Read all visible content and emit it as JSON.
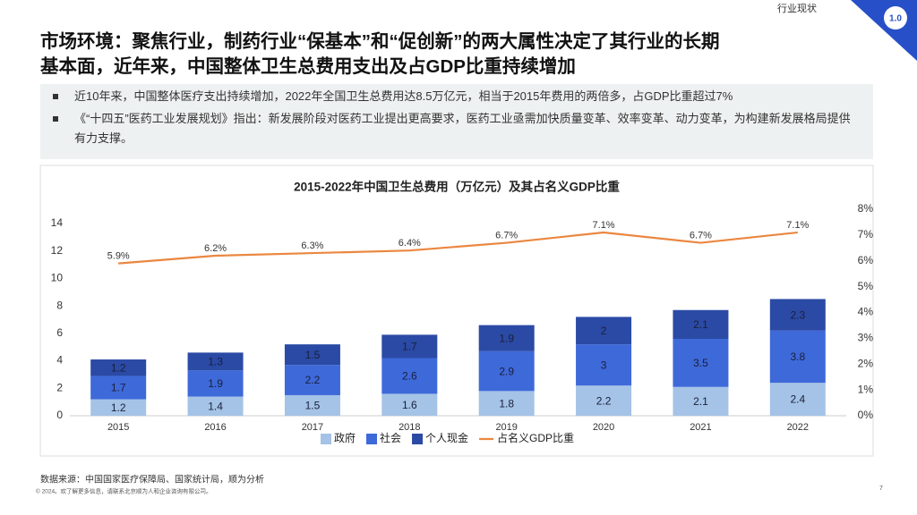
{
  "header": {
    "section": "行业现状",
    "section_no": "1.0",
    "title_lines": [
      "市场环境：聚焦行业，制药行业“保基本”和“促创新”的两大属性决定了其行业的长期",
      "基本面，近年来，中国整体卫生总费用支出及占GDP比重持续增加"
    ]
  },
  "bullets": [
    "近10年来，中国整体医疗支出持续增加，2022年全国卫生总费用达8.5万亿元，相当于2015年费用的两倍多，占GDP比重超过7%",
    "《“十四五”医药工业发展规划》指出：新发展阶段对医药工业提出更高要求，医药工业亟需加快质量变革、效率变革、动力变革，为构建新发展格局提供有力支撑。"
  ],
  "chart_data": {
    "type": "stacked_bar_line",
    "title": "2015-2022年中国卫生总费用（万亿元）及其占名义GDP比重",
    "categories": [
      "2015",
      "2016",
      "2017",
      "2018",
      "2019",
      "2020",
      "2021",
      "2022"
    ],
    "series": [
      {
        "name": "政府",
        "color": "#a4c3e6",
        "values": [
          1.2,
          1.4,
          1.5,
          1.6,
          1.8,
          2.2,
          2.1,
          2.4
        ]
      },
      {
        "name": "社会",
        "color": "#3e69d9",
        "values": [
          1.7,
          1.9,
          2.2,
          2.6,
          2.9,
          3.0,
          3.5,
          3.8
        ]
      },
      {
        "name": "个人现金",
        "color": "#2b4aa5",
        "values": [
          1.2,
          1.3,
          1.5,
          1.7,
          1.9,
          2.0,
          2.1,
          2.3
        ]
      },
      {
        "name": "占名义GDP比重",
        "color": "#ea8740",
        "type": "line",
        "axis": "y2",
        "values": [
          5.9,
          6.2,
          6.3,
          6.4,
          6.7,
          7.1,
          6.7,
          7.1
        ],
        "value_labels": [
          "5.9%",
          "6.2%",
          "6.3%",
          "6.4%",
          "6.7%",
          "7.1%",
          "6.7%",
          "7.1%"
        ]
      }
    ],
    "ylim": [
      0,
      14
    ],
    "yticks": [
      0,
      2,
      4,
      6,
      8,
      10,
      12,
      14
    ],
    "y2lim": [
      0,
      8
    ],
    "y2ticks": [
      {
        "value": 0,
        "label": "0%"
      },
      {
        "value": 1,
        "label": "1%"
      },
      {
        "value": 2,
        "label": "2%"
      },
      {
        "value": 3,
        "label": "3%"
      },
      {
        "value": 4,
        "label": "4%"
      },
      {
        "value": 5,
        "label": "5%"
      },
      {
        "value": 6,
        "label": "6%"
      },
      {
        "value": 7,
        "label": "7%"
      },
      {
        "value": 8,
        "label": "8%"
      }
    ],
    "legend": "bottom"
  },
  "footer": {
    "source": "数据来源：中国国家医疗保障局、国家统计局，顺为分析",
    "copyright": "© 2024。欢了解更多信息，请联系北京顺为人和企业咨询有限公司。",
    "page": "7"
  }
}
